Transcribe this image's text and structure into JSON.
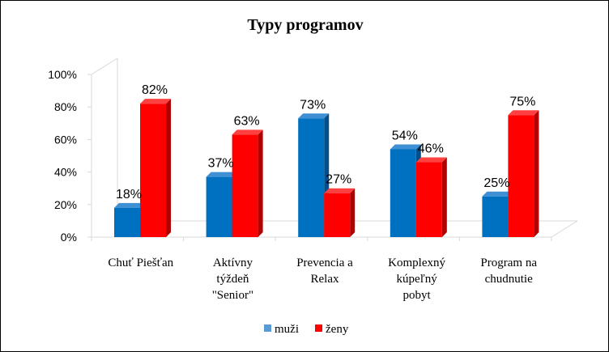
{
  "chart_data": {
    "type": "bar",
    "title": "Typy programov",
    "categories": [
      [
        "Chuť Piešťan"
      ],
      [
        "Aktívny",
        "týždeň",
        "\"Senior\""
      ],
      [
        "Prevencia a",
        "Relax"
      ],
      [
        "Komplexný",
        "kúpeľný",
        "pobyt"
      ],
      [
        "Program na",
        "chudnutie"
      ]
    ],
    "series": [
      {
        "name": "muži",
        "values": [
          18,
          37,
          73,
          54,
          25
        ],
        "labels": [
          "18%",
          "37%",
          "73%",
          "54%",
          "25%"
        ]
      },
      {
        "name": "ženy",
        "values": [
          82,
          63,
          27,
          46,
          75
        ],
        "labels": [
          "82%",
          "63%",
          "27%",
          "46%",
          "75%"
        ]
      }
    ],
    "y_ticks": [
      "0%",
      "20%",
      "40%",
      "60%",
      "80%",
      "100%"
    ],
    "ylim": [
      0,
      100
    ],
    "grid": false,
    "legend_position": "bottom",
    "colors": {
      "muzi_front": "#0070C0",
      "muzi_side": "#004F8C",
      "muzi_top": "#3E8FD4",
      "zeny_front": "#FF0000",
      "zeny_side": "#B00000",
      "zeny_top": "#FF4040",
      "legend_muzi": "#5B9BD5",
      "legend_zeny": "#FF0000",
      "axis": "#D9D9D9"
    }
  }
}
